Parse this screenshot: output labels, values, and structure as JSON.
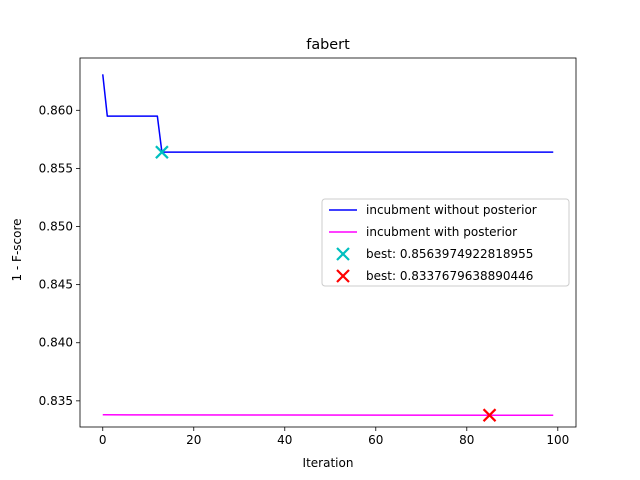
{
  "chart_data": {
    "type": "line",
    "title": "fabert",
    "xlabel": "Iteration",
    "ylabel": "1 - F-score",
    "xlim": [
      -5,
      104
    ],
    "ylim": [
      0.83275,
      0.8645
    ],
    "xticks": [
      0,
      20,
      40,
      60,
      80,
      100
    ],
    "yticks": [
      0.835,
      0.84,
      0.845,
      0.85,
      0.855,
      0.86
    ],
    "ytick_labels": [
      "0.835",
      "0.840",
      "0.845",
      "0.850",
      "0.855",
      "0.860"
    ],
    "grid": false,
    "legend_position": "center-right",
    "series": [
      {
        "name": "incubment without posterior",
        "kind": "line",
        "color": "#0000ff",
        "x": [
          0,
          1,
          12,
          13,
          99
        ],
        "y": [
          0.8631,
          0.8595,
          0.8595,
          0.8564,
          0.8564
        ]
      },
      {
        "name": "incubment with posterior",
        "kind": "line",
        "color": "#ff00ff",
        "x": [
          0,
          40,
          99
        ],
        "y": [
          0.8338,
          0.83378,
          0.83376
        ]
      },
      {
        "name": "best: 0.8563974922818955",
        "kind": "marker",
        "marker": "x",
        "color": "#00bfbf",
        "x": [
          13
        ],
        "y": [
          0.8563974922818955
        ]
      },
      {
        "name": "best: 0.8337679638890446",
        "kind": "marker",
        "marker": "x",
        "color": "#ff0000",
        "x": [
          85
        ],
        "y": [
          0.8337679638890446
        ]
      }
    ]
  }
}
